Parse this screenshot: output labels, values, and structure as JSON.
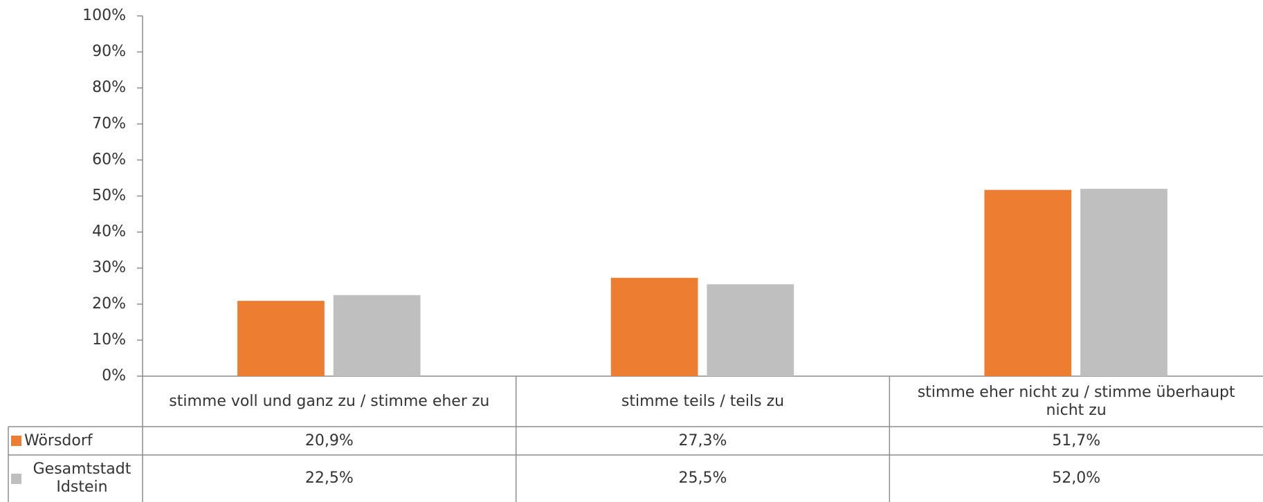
{
  "chart_data": {
    "type": "bar",
    "categories": [
      "stimme voll und ganz zu / stimme eher zu",
      "stimme teils / teils zu",
      "stimme eher nicht zu / stimme überhaupt nicht zu"
    ],
    "series": [
      {
        "name": "Wörsdorf",
        "color": "#ed7d31",
        "values": [
          20.9,
          27.3,
          51.7
        ],
        "value_labels": [
          "20,9%",
          "27,3%",
          "51,7%"
        ]
      },
      {
        "name": "Gesamtstadt Idstein",
        "color": "#bfbfbf",
        "values": [
          22.5,
          25.5,
          52.0
        ],
        "value_labels": [
          "22,5%",
          "25,5%",
          "52,0%"
        ]
      }
    ],
    "ylim": [
      0,
      100
    ],
    "yticks": [
      {
        "value": 0,
        "label": "0%"
      },
      {
        "value": 10,
        "label": "10%"
      },
      {
        "value": 20,
        "label": "20%"
      },
      {
        "value": 30,
        "label": "30%"
      },
      {
        "value": 40,
        "label": "40%"
      },
      {
        "value": 50,
        "label": "50%"
      },
      {
        "value": 60,
        "label": "60%"
      },
      {
        "value": 70,
        "label": "70%"
      },
      {
        "value": 80,
        "label": "80%"
      },
      {
        "value": 90,
        "label": "90%"
      },
      {
        "value": 100,
        "label": "100%"
      }
    ],
    "grid": false
  }
}
